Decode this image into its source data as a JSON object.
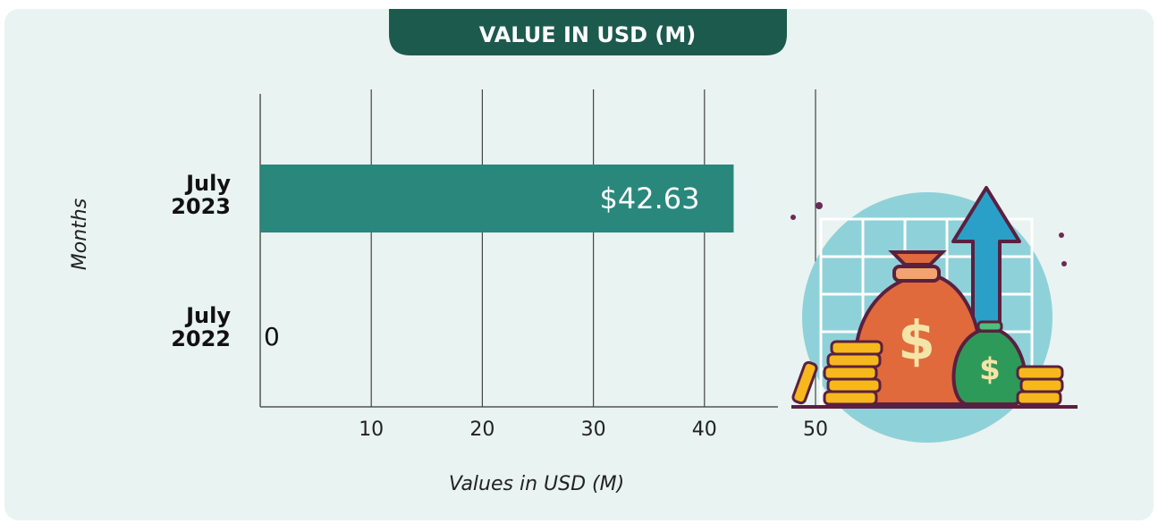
{
  "chart_data": {
    "type": "bar",
    "orientation": "horizontal",
    "title": "VALUE IN USD (M)",
    "categories": [
      "July 2023",
      "July 2022"
    ],
    "values": [
      42.63,
      0
    ],
    "value_labels": [
      "$42.63",
      "0"
    ],
    "color": "#2a877c",
    "xlabel": "Values in USD (M)",
    "ylabel": "Months",
    "xlim": [
      0,
      50
    ],
    "xticks": [
      10,
      20,
      30,
      40,
      50
    ],
    "grid": true
  }
}
